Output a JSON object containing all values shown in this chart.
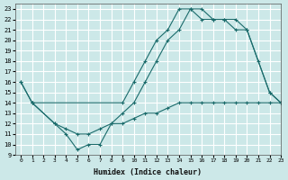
{
  "bg_color": "#cce8e8",
  "grid_color": "#ffffff",
  "line_color": "#1a6b6b",
  "xlabel": "Humidex (Indice chaleur)",
  "xlim": [
    -0.5,
    23
  ],
  "ylim": [
    9,
    23.5
  ],
  "xticks": [
    0,
    1,
    2,
    3,
    4,
    5,
    6,
    7,
    8,
    9,
    10,
    11,
    12,
    13,
    14,
    15,
    16,
    17,
    18,
    19,
    20,
    21,
    22,
    23
  ],
  "yticks": [
    9,
    10,
    11,
    12,
    13,
    14,
    15,
    16,
    17,
    18,
    19,
    20,
    21,
    22,
    23
  ],
  "series": [
    {
      "x": [
        0,
        1,
        3,
        4,
        5,
        6,
        7,
        8,
        9,
        10,
        11,
        12,
        13,
        14,
        15,
        16,
        17,
        18,
        19,
        20,
        21,
        22,
        23
      ],
      "y": [
        16,
        14,
        12,
        11,
        9.5,
        10,
        10,
        12,
        13,
        14,
        16,
        18,
        20,
        21,
        23,
        23,
        22,
        22,
        22,
        21,
        18,
        15,
        14
      ],
      "linestyle": "-"
    },
    {
      "x": [
        0,
        1,
        9,
        10,
        11,
        12,
        13,
        14,
        15,
        16,
        17,
        18,
        19,
        20,
        22,
        23
      ],
      "y": [
        16,
        14,
        14,
        16,
        18,
        20,
        21,
        23,
        23,
        22,
        22,
        22,
        21,
        21,
        15,
        14
      ],
      "linestyle": "-"
    },
    {
      "x": [
        1,
        3,
        4,
        5,
        6,
        7,
        8,
        9,
        10,
        11,
        12,
        13,
        14,
        15,
        16,
        17,
        18,
        19,
        20,
        21,
        22,
        23
      ],
      "y": [
        14,
        12,
        11.5,
        11,
        11,
        11.5,
        12,
        12,
        12.5,
        13,
        13,
        13.5,
        14,
        14,
        14,
        14,
        14,
        14,
        14,
        14,
        14,
        14
      ],
      "linestyle": "-"
    }
  ]
}
